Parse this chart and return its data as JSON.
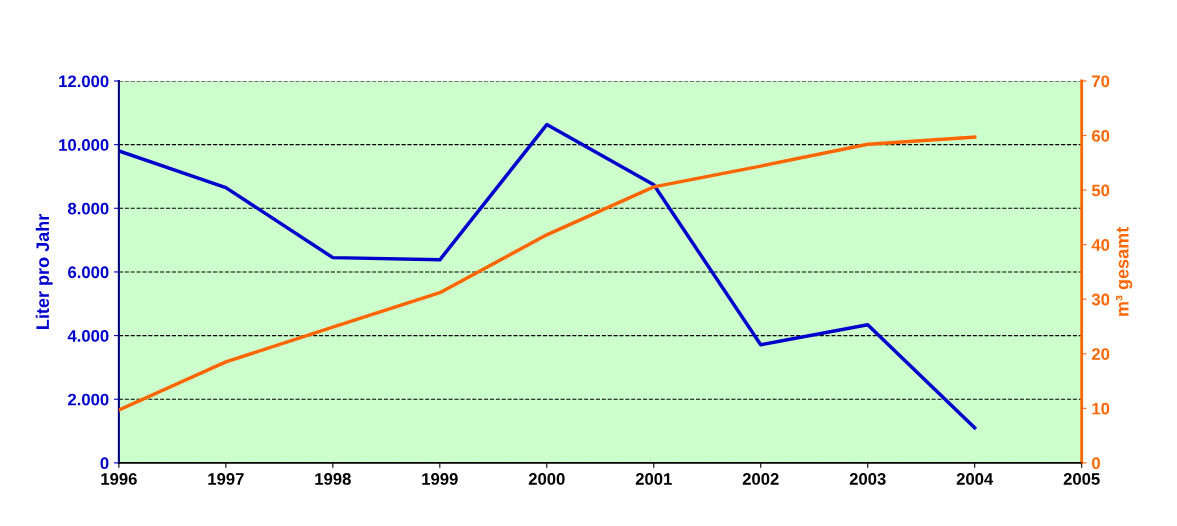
{
  "chart_data": {
    "type": "line",
    "xlabel": null,
    "ylabel": "Liter pro Jahr",
    "y2label": "m³ gesamt",
    "x": [
      1996,
      1997,
      1998,
      1999,
      2000,
      2001,
      2002,
      2003,
      2004
    ],
    "series": [
      {
        "color": "#0000cc",
        "values": [
          9800,
          8650,
          6450,
          6380,
          10630,
          8740,
          3710,
          4340,
          1100
        ]
      },
      {
        "color": "#ff6600",
        "axis": "y2",
        "values": [
          9.7,
          18.5,
          24.9,
          31.2,
          41.8,
          50.6,
          54.4,
          58.4,
          59.7
        ]
      }
    ],
    "xlim": [
      1996,
      2005
    ],
    "xticks": [
      1996,
      1997,
      1998,
      1999,
      2000,
      2001,
      2002,
      2003,
      2004,
      2005
    ],
    "ylim": [
      0,
      12000
    ],
    "yticks": [
      0,
      {
        "value": 2000,
        "label": "2.000"
      },
      {
        "value": 4000,
        "label": "4.000"
      },
      {
        "value": 6000,
        "label": "6.000"
      },
      {
        "value": 8000,
        "label": "8.000"
      },
      {
        "value": 10000,
        "label": "10.000"
      },
      {
        "value": 12000,
        "label": "12.000"
      }
    ],
    "y2lim": [
      0,
      70
    ],
    "y2ticks": [
      0,
      10,
      20,
      30,
      40,
      50,
      60,
      70
    ],
    "grid": "y",
    "marker": "none",
    "line_style": "solid"
  }
}
